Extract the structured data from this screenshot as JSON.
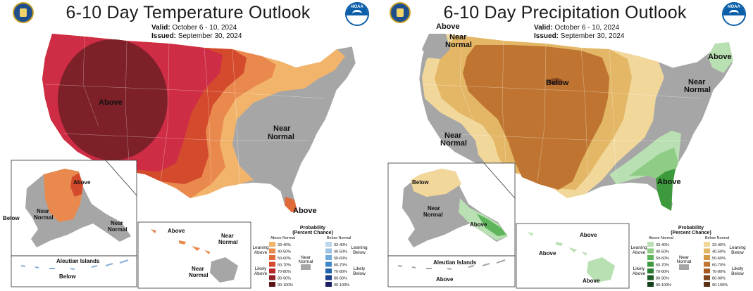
{
  "temperature": {
    "title": "6-10 Day Temperature Outlook",
    "valid_label": "Valid:",
    "valid_value": "October 6 - 10, 2024",
    "issued_label": "Issued:",
    "issued_value": "September 30, 2024",
    "region_labels": {
      "main_above": "Above",
      "east_near_normal_1": "Near",
      "east_near_normal_2": "Normal",
      "florida_above": "Above",
      "alaska_above": "Above",
      "alaska_near_normal_1": "Near",
      "alaska_near_normal_2": "Normal",
      "alaska_se_near_normal_1": "Near",
      "alaska_se_near_normal_2": "Normal",
      "alaska_below": "Below",
      "aleutian_title": "Aleutian Islands",
      "aleutian_below": "Below",
      "hawaii_above": "Above",
      "hawaii_near_normal_1_a": "Near",
      "hawaii_near_normal_1_b": "Normal",
      "hawaii_near_normal_2_a": "Near",
      "hawaii_near_normal_2_b": "Normal"
    },
    "legend": {
      "title_1": "Probability",
      "title_2": "(Percent Chance)",
      "col_above": "Above Normal",
      "col_below": "Below Normal",
      "leaning_above_1": "Leaning",
      "leaning_above_2": "Above",
      "likely_above_1": "Likely",
      "likely_above_2": "Above",
      "near_normal_1": "Near",
      "near_normal_2": "Normal",
      "leaning_below_1": "Leaning",
      "leaning_below_2": "Below",
      "likely_below_1": "Likely",
      "likely_below_2": "Below",
      "ranges": [
        "33-40%",
        "40-50%",
        "50-60%",
        "60-70%",
        "70-80%",
        "80-90%",
        "90-100%"
      ],
      "above_colors": [
        "#f2b36b",
        "#e9894e",
        "#e06a3a",
        "#d44a2c",
        "#b8272a",
        "#8e1f23",
        "#5c1418"
      ],
      "below_colors": [
        "#bcd6ee",
        "#9cc3e6",
        "#70a9db",
        "#3f86c6",
        "#2064ad",
        "#1b3f8a",
        "#1d1f66"
      ],
      "near_color": "#a6a6a6"
    }
  },
  "precipitation": {
    "title": "6-10 Day Precipitation Outlook",
    "valid_label": "Valid:",
    "valid_value": "October 6 - 10, 2024",
    "issued_label": "Issued:",
    "issued_value": "September 30, 2024",
    "region_labels": {
      "nw_above": "Above",
      "nw_near_normal_1": "Near",
      "nw_near_normal_2": "Normal",
      "ne_above": "Above",
      "main_below": "Below",
      "sw_near_normal_1": "Near",
      "sw_near_normal_2": "Normal",
      "e_near_normal_1": "Near",
      "e_near_normal_2": "Normal",
      "se_above": "Above",
      "alaska_below": "Below",
      "alaska_near_normal_1": "Near",
      "alaska_near_normal_2": "Normal",
      "alaska_se_above": "Above",
      "aleutian_title": "Aleutian Islands",
      "aleutian_above": "Above",
      "hawaii_above_1": "Above",
      "hawaii_above_2": "Above",
      "hawaii_above_3": "Above"
    },
    "legend": {
      "title_1": "Probability",
      "title_2": "(Percent Chance)",
      "col_above": "Above Normal",
      "col_below": "Below Normal",
      "leaning_above_1": "Leaning",
      "leaning_above_2": "Above",
      "likely_above_1": "Likely",
      "likely_above_2": "Above",
      "near_normal_1": "Near",
      "near_normal_2": "Normal",
      "leaning_below_1": "Leaning",
      "leaning_below_2": "Below",
      "likely_below_1": "Likely",
      "likely_below_2": "Below",
      "ranges": [
        "33-40%",
        "40-50%",
        "50-60%",
        "60-70%",
        "70-80%",
        "80-90%",
        "90-100%"
      ],
      "above_colors": [
        "#b9e0b2",
        "#8fcd87",
        "#5fb55b",
        "#3c9a3d",
        "#2a7a30",
        "#1d5b25",
        "#13401a"
      ],
      "below_colors": [
        "#f2d79b",
        "#e3b766",
        "#d39a45",
        "#bf7531",
        "#a35a25",
        "#7f441d",
        "#5b2f14"
      ],
      "near_color": "#a6a6a6"
    }
  },
  "logos": {
    "left": "doc-seal-icon",
    "right": "noaa-logo-icon"
  }
}
